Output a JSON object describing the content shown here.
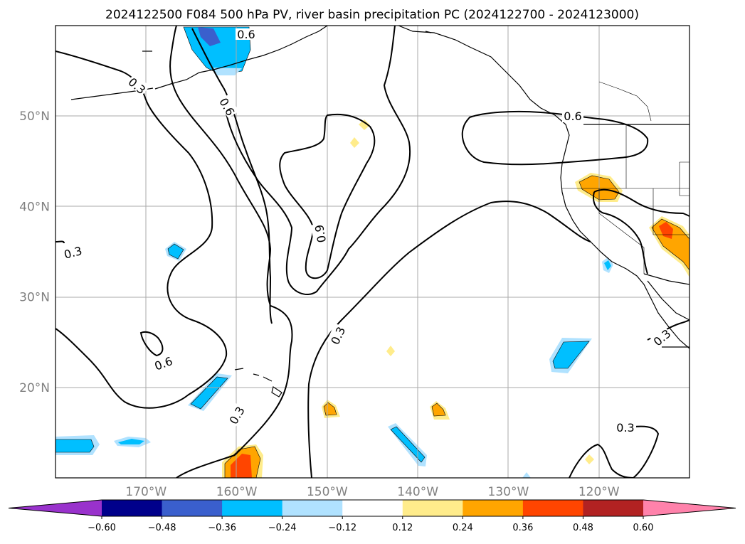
{
  "title": "2024122500 F084 500 hPa PV, river basin precipitation PC (2024122700 - 2024123000)",
  "map": {
    "lon_range": [
      -180,
      -110
    ],
    "lat_range": [
      10,
      60
    ],
    "grid": true,
    "lat_ticks": [
      {
        "value": 50,
        "label": "50°N"
      },
      {
        "value": 40,
        "label": "40°N"
      },
      {
        "value": 30,
        "label": "30°N"
      },
      {
        "value": 20,
        "label": "20°N"
      }
    ],
    "lon_ticks": [
      {
        "value": -170,
        "label": "170°W"
      },
      {
        "value": -160,
        "label": "160°W"
      },
      {
        "value": -150,
        "label": "150°W"
      },
      {
        "value": -140,
        "label": "140°W"
      },
      {
        "value": -130,
        "label": "130°W"
      },
      {
        "value": -120,
        "label": "120°W"
      }
    ],
    "contour_labels": [
      "0.3",
      "0.6",
      "0.9"
    ]
  },
  "colorbar": {
    "orientation": "horizontal",
    "extend": "both",
    "colors": [
      "#9932cc",
      "#00008b",
      "#3a5fcd",
      "#00bfff",
      "#b0e2ff",
      "#ffffff",
      "#ffec8b",
      "#ffa500",
      "#ff4500",
      "#b22222",
      "#ff82ab"
    ],
    "tick_labels": [
      "−0.60",
      "−0.48",
      "−0.36",
      "−0.24",
      "−0.12",
      "0.12",
      "0.24",
      "0.36",
      "0.48",
      "0.60"
    ]
  }
}
